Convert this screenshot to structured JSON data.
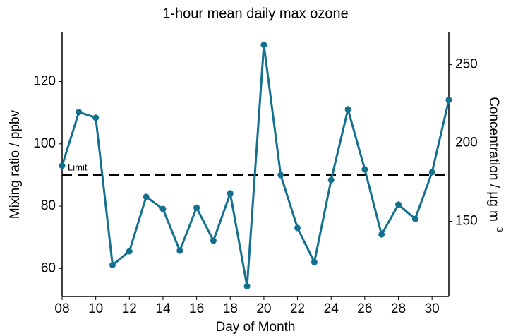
{
  "chart_data": {
    "type": "line",
    "title": "1-hour mean daily max ozone",
    "xlabel": "Day of Month",
    "ylabel": "Mixing ratio / ppbv",
    "y2label": "Concentration /  µg m",
    "y2label_sup": "−3",
    "x": [
      8,
      9,
      10,
      11,
      12,
      13,
      14,
      15,
      16,
      17,
      18,
      19,
      20,
      21,
      22,
      23,
      24,
      25,
      26,
      27,
      28,
      29,
      30,
      31
    ],
    "series": [
      {
        "name": "Ozone",
        "color": "#13708f",
        "values": [
          93.0,
          110.2,
          108.4,
          61.1,
          65.5,
          83.0,
          79.1,
          65.7,
          79.5,
          68.9,
          84.1,
          54.3,
          131.8,
          90.0,
          73.0,
          62.0,
          88.4,
          111.1,
          91.8,
          70.9,
          80.5,
          75.9,
          90.9,
          114.1
        ]
      }
    ],
    "xlim": [
      8,
      31
    ],
    "xticks": [
      {
        "value": 8,
        "label": "08"
      },
      10,
      12,
      14,
      16,
      18,
      20,
      22,
      24,
      26,
      28,
      30
    ],
    "ylim": [
      51,
      136
    ],
    "yticks": [
      60,
      80,
      100,
      120
    ],
    "y2lim": [
      102,
      271
    ],
    "y2ticks": [
      150,
      200,
      250
    ],
    "hline": {
      "value": 90,
      "label": "Limit",
      "color": "#000000"
    },
    "grid": false
  }
}
